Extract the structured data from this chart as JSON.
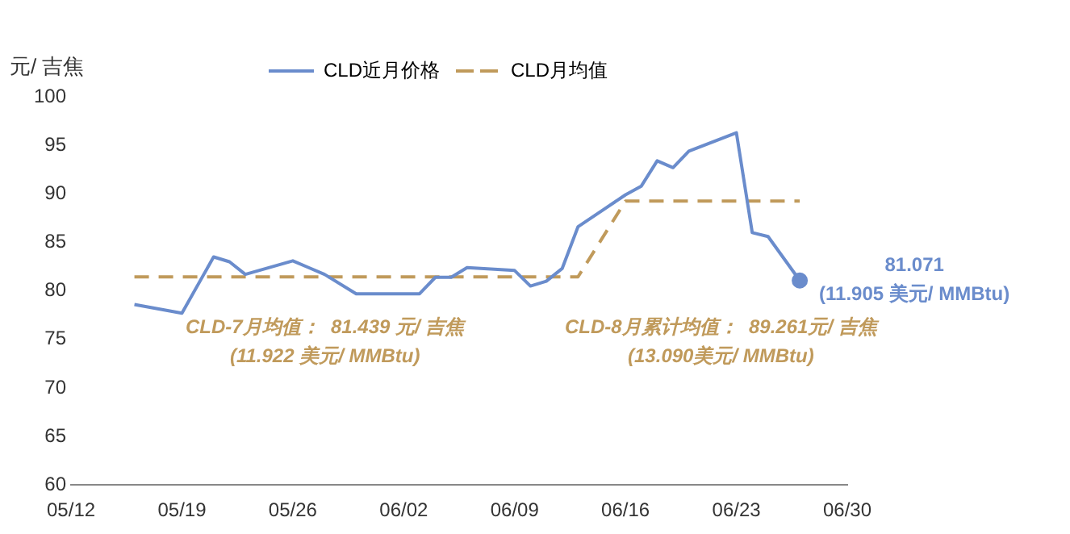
{
  "chart_data": {
    "type": "line",
    "ylabel": "元/ 吉焦",
    "legend": "top",
    "xlim": [
      "--05-12",
      "--06-30"
    ],
    "xticks": [
      {
        "value": "--05-12",
        "label": "05/12"
      },
      {
        "value": "--05-19",
        "label": "05/19"
      },
      {
        "value": "--05-26",
        "label": "05/26"
      },
      {
        "value": "--06-02",
        "label": "06/02"
      },
      {
        "value": "--06-09",
        "label": "06/09"
      },
      {
        "value": "--06-16",
        "label": "06/16"
      },
      {
        "value": "--06-23",
        "label": "06/23"
      },
      {
        "value": "--06-30",
        "label": "06/30"
      }
    ],
    "ylim": [
      60,
      100
    ],
    "yticks": [
      60,
      65,
      70,
      75,
      80,
      85,
      90,
      95,
      100
    ],
    "grid": false,
    "series": [
      {
        "name": "CLD近月价格",
        "color": "#6a8ccc",
        "line_style": "solid",
        "x": [
          "--05-16",
          "--05-19",
          "--05-21",
          "--05-22",
          "--05-23",
          "--05-26",
          "--05-27",
          "--05-28",
          "--05-30",
          "--06-03",
          "--06-04",
          "--06-05",
          "--06-06",
          "--06-09",
          "--06-10",
          "--06-11",
          "--06-12",
          "--06-13",
          "--06-16",
          "--06-17",
          "--06-18",
          "--06-19",
          "--06-20",
          "--06-23",
          "--06-24",
          "--06-25",
          "--06-27"
        ],
        "values": [
          78.6,
          77.7,
          83.5,
          83.0,
          81.7,
          83.1,
          82.4,
          81.7,
          79.7,
          79.7,
          81.4,
          81.4,
          82.4,
          82.1,
          80.5,
          81.0,
          82.3,
          86.6,
          89.9,
          90.8,
          93.4,
          92.7,
          94.4,
          96.3,
          86.0,
          85.6,
          81.071
        ]
      },
      {
        "name": "CLD月均值",
        "color": "#c09a5b",
        "line_style": "dashed",
        "x": [
          "--05-16",
          "--06-13",
          "--06-16",
          "--06-27"
        ],
        "values": [
          81.439,
          81.439,
          89.261,
          89.261
        ]
      }
    ],
    "annotations": [
      "CLD-7月均值：  81.439 元/ 吉焦\n(11.922 美元/ MMBtu)",
      "CLD-8月累计均值：  89.261元/ 吉焦\n(13.090美元/ MMBtu)",
      {
        "text": "81.071\n(11.905 美元/ MMBtu)",
        "x": "--06-27",
        "y": 81.071
      }
    ]
  }
}
